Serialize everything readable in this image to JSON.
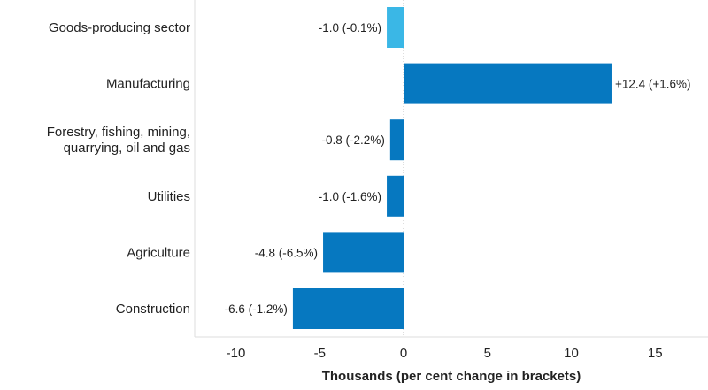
{
  "chart_data": {
    "type": "bar",
    "orientation": "horizontal",
    "categories": [
      "Goods-producing sector",
      "Manufacturing",
      "Forestry, fishing, mining, quarrying, oil and gas",
      "Utilities",
      "Agriculture",
      "Construction"
    ],
    "category_lines": [
      [
        "Goods-producing sector"
      ],
      [
        "Manufacturing"
      ],
      [
        "Forestry, fishing, mining,",
        "quarrying, oil and gas"
      ],
      [
        "Utilities"
      ],
      [
        "Agriculture"
      ],
      [
        "Construction"
      ]
    ],
    "values": [
      -1.0,
      12.4,
      -0.8,
      -1.0,
      -4.8,
      -6.6
    ],
    "data_labels": [
      "-1.0 (-0.1%)",
      "+12.4 (+1.6%)",
      "-0.8 (-2.2%)",
      "-1.0 (-1.6%)",
      "-4.8 (-6.5%)",
      "-6.6 (-1.2%)"
    ],
    "bar_colors": [
      "#3ab7e6",
      "#0678c0",
      "#0678c0",
      "#0678c0",
      "#0678c0",
      "#0678c0"
    ],
    "xlabel": "Thousands (per cent change in brackets)",
    "xlim": [
      -12,
      18
    ],
    "xticks": [
      -10,
      -5,
      0,
      5,
      10,
      15
    ],
    "xtick_labels": [
      "-10",
      "-5",
      "0",
      "5",
      "10",
      "15"
    ],
    "grid": false,
    "zero_line": "dotted"
  }
}
